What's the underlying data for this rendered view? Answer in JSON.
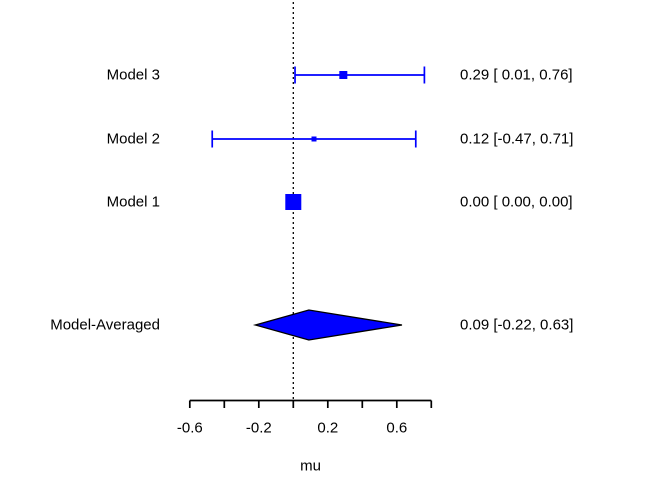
{
  "chart_data": {
    "type": "forest",
    "title": "",
    "xlabel": "mu",
    "x_axis": {
      "range": [
        -0.6,
        0.8
      ],
      "ticks": [
        -0.6,
        -0.4,
        -0.2,
        0,
        0.2,
        0.4,
        0.6,
        0.8
      ],
      "labeled_ticks": [
        {
          "value": -0.6,
          "label": "-0.6"
        },
        {
          "value": -0.2,
          "label": "-0.2"
        },
        {
          "value": 0.2,
          "label": "0.2"
        },
        {
          "value": 0.6,
          "label": "0.6"
        }
      ]
    },
    "reference_line_x": 0,
    "grid": false,
    "legend": false,
    "rows": [
      {
        "label": "Model 3",
        "estimate": 0.29,
        "ci_lower": 0.01,
        "ci_upper": 0.76,
        "display": "0.29 [ 0.01, 0.76]",
        "marker": "square",
        "marker_size": 8
      },
      {
        "label": "Model 2",
        "estimate": 0.12,
        "ci_lower": -0.47,
        "ci_upper": 0.71,
        "display": "0.12 [-0.47, 0.71]",
        "marker": "square",
        "marker_size": 5
      },
      {
        "label": "Model 1",
        "estimate": 0.0,
        "ci_lower": 0.0,
        "ci_upper": 0.0,
        "display": "0.00 [ 0.00, 0.00]",
        "marker": "square",
        "marker_size": 16
      },
      {
        "label": "Model-Averaged",
        "estimate": 0.09,
        "ci_lower": -0.22,
        "ci_upper": 0.63,
        "display": "0.09 [-0.22, 0.63]",
        "marker": "diamond",
        "marker_size": 15
      }
    ],
    "colors": {
      "series": "#0000ff",
      "diamond_fill": "#0000ff",
      "diamond_outline": "#000000",
      "reference_line": "#000000",
      "axis": "#000000",
      "text": "#000000"
    }
  }
}
